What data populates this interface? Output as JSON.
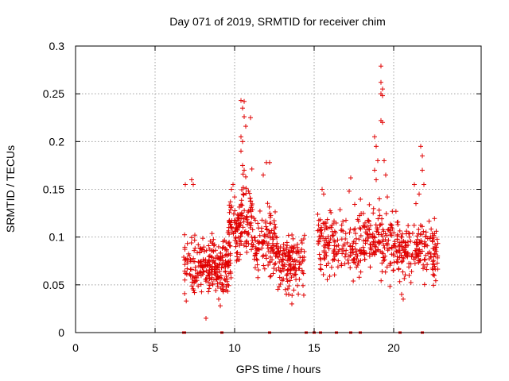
{
  "chart_data": {
    "type": "scatter",
    "title": "Day 071 of 2019, SRMTID for receiver chim",
    "xlabel": "GPS time / hours",
    "ylabel": "SRMTID / TECUs",
    "xlim": [
      0,
      25.5
    ],
    "ylim": [
      0,
      0.3
    ],
    "xticks": [
      0,
      5,
      10,
      15,
      20
    ],
    "xtick_labels": [
      "0",
      "5",
      "10",
      "15",
      "20"
    ],
    "yticks": [
      0,
      0.05,
      0.1,
      0.15,
      0.2,
      0.25,
      0.3
    ],
    "ytick_labels": [
      "0",
      "0.05",
      "0.1",
      "0.15",
      "0.2",
      "0.25",
      "0.3"
    ],
    "grid": true,
    "marker_color": "#e00000",
    "marker": "+",
    "series": [
      {
        "name": "SRMTID",
        "clusters": [
          {
            "x_range": [
              6.8,
              9.8
            ],
            "y_center": 0.07,
            "y_spread": 0.025,
            "n": 260
          },
          {
            "x_range": [
              9.6,
              10.4
            ],
            "y_center": 0.105,
            "y_spread": 0.03,
            "n": 80
          },
          {
            "x_range": [
              10.4,
              11.2
            ],
            "y_center": 0.12,
            "y_spread": 0.04,
            "n": 70
          },
          {
            "x_range": [
              11.2,
              12.6
            ],
            "y_center": 0.095,
            "y_spread": 0.03,
            "n": 110
          },
          {
            "x_range": [
              12.6,
              14.4
            ],
            "y_center": 0.075,
            "y_spread": 0.025,
            "n": 150
          },
          {
            "x_range": [
              15.2,
              16.2
            ],
            "y_center": 0.095,
            "y_spread": 0.03,
            "n": 70
          },
          {
            "x_range": [
              16.2,
              17.5
            ],
            "y_center": 0.09,
            "y_spread": 0.025,
            "n": 70
          },
          {
            "x_range": [
              17.5,
              19.2
            ],
            "y_center": 0.095,
            "y_spread": 0.03,
            "n": 120
          },
          {
            "x_range": [
              19.2,
              20.6
            ],
            "y_center": 0.09,
            "y_spread": 0.03,
            "n": 100
          },
          {
            "x_range": [
              20.6,
              22.8
            ],
            "y_center": 0.085,
            "y_spread": 0.025,
            "n": 150
          }
        ],
        "highlights": [
          {
            "x": 10.4,
            "y": 0.243
          },
          {
            "x": 10.6,
            "y": 0.242
          },
          {
            "x": 10.5,
            "y": 0.235
          },
          {
            "x": 10.6,
            "y": 0.226
          },
          {
            "x": 10.7,
            "y": 0.216
          },
          {
            "x": 10.4,
            "y": 0.205
          },
          {
            "x": 10.5,
            "y": 0.2
          },
          {
            "x": 10.4,
            "y": 0.19
          },
          {
            "x": 10.5,
            "y": 0.175
          },
          {
            "x": 10.6,
            "y": 0.17
          },
          {
            "x": 11.0,
            "y": 0.225
          },
          {
            "x": 10.7,
            "y": 0.163
          },
          {
            "x": 9.9,
            "y": 0.155
          },
          {
            "x": 9.8,
            "y": 0.15
          },
          {
            "x": 10.0,
            "y": 0.142
          },
          {
            "x": 12.0,
            "y": 0.178
          },
          {
            "x": 12.2,
            "y": 0.178
          },
          {
            "x": 11.8,
            "y": 0.165
          },
          {
            "x": 6.9,
            "y": 0.155
          },
          {
            "x": 7.3,
            "y": 0.16
          },
          {
            "x": 7.4,
            "y": 0.155
          },
          {
            "x": 8.2,
            "y": 0.015
          },
          {
            "x": 9.1,
            "y": 0.028
          },
          {
            "x": 9.0,
            "y": 0.035
          },
          {
            "x": 13.6,
            "y": 0.03
          },
          {
            "x": 13.4,
            "y": 0.04
          },
          {
            "x": 15.5,
            "y": 0.15
          },
          {
            "x": 15.6,
            "y": 0.145
          },
          {
            "x": 17.3,
            "y": 0.162
          },
          {
            "x": 17.2,
            "y": 0.148
          },
          {
            "x": 18.8,
            "y": 0.205
          },
          {
            "x": 18.9,
            "y": 0.195
          },
          {
            "x": 19.0,
            "y": 0.18
          },
          {
            "x": 18.8,
            "y": 0.17
          },
          {
            "x": 18.9,
            "y": 0.16
          },
          {
            "x": 19.2,
            "y": 0.279
          },
          {
            "x": 19.2,
            "y": 0.262
          },
          {
            "x": 19.3,
            "y": 0.255
          },
          {
            "x": 19.2,
            "y": 0.25
          },
          {
            "x": 19.3,
            "y": 0.248
          },
          {
            "x": 19.2,
            "y": 0.222
          },
          {
            "x": 19.3,
            "y": 0.22
          },
          {
            "x": 19.4,
            "y": 0.18
          },
          {
            "x": 19.5,
            "y": 0.165
          },
          {
            "x": 19.6,
            "y": 0.142
          },
          {
            "x": 19.1,
            "y": 0.14
          },
          {
            "x": 20.5,
            "y": 0.04
          },
          {
            "x": 20.6,
            "y": 0.035
          },
          {
            "x": 21.3,
            "y": 0.155
          },
          {
            "x": 21.4,
            "y": 0.135
          },
          {
            "x": 21.7,
            "y": 0.195
          },
          {
            "x": 21.8,
            "y": 0.185
          },
          {
            "x": 21.8,
            "y": 0.17
          },
          {
            "x": 21.9,
            "y": 0.155
          },
          {
            "x": 21.6,
            "y": 0.145
          }
        ],
        "zero_values_x": [
          6.8,
          6.85,
          9.2,
          12.2,
          14.5,
          15.0,
          15.4,
          16.4,
          17.3,
          17.9,
          20.4,
          21.8
        ]
      }
    ]
  }
}
